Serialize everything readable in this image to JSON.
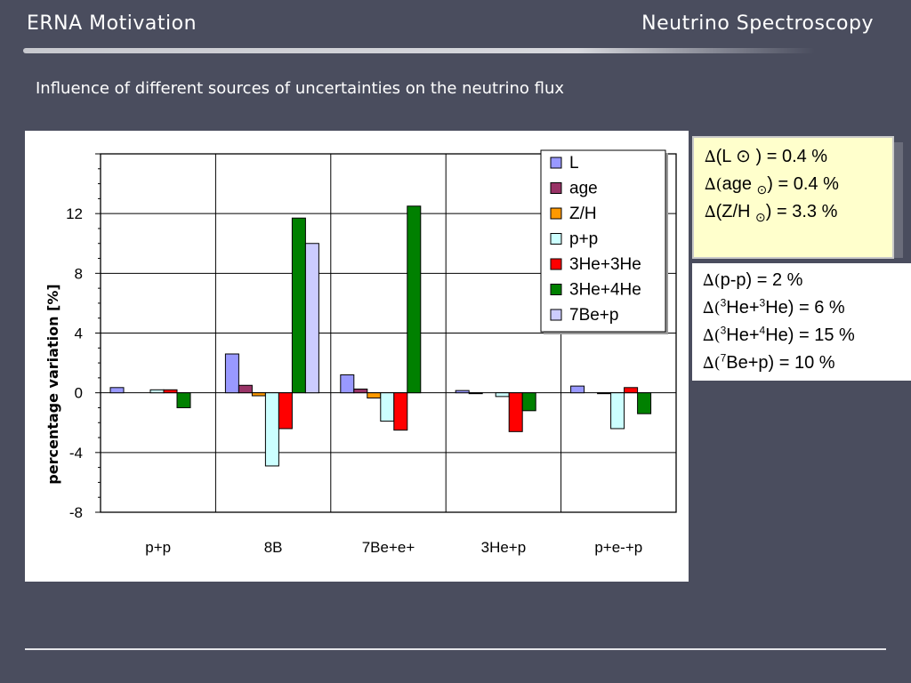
{
  "header": {
    "left_title": "ERNA  Motivation",
    "right_title": "Neutrino Spectroscopy"
  },
  "subtitle": "Influence of different sources of uncertainties on the neutrino flux",
  "chart_data": {
    "type": "bar",
    "title": "",
    "xlabel": "",
    "ylabel": "percentage variation [%]",
    "ylim": [
      -8,
      16
    ],
    "yticks": [
      -8,
      -4,
      0,
      4,
      8,
      12
    ],
    "grid": true,
    "legend_position": "top-right",
    "categories": [
      "p+p",
      "8B",
      "7Be+e+",
      "3He+p",
      "p+e-+p"
    ],
    "series": [
      {
        "name": "L",
        "color": "#9999ff",
        "values": [
          0.35,
          2.6,
          1.2,
          0.15,
          0.45
        ]
      },
      {
        "name": "age",
        "color": "#993366",
        "values": [
          0.0,
          0.5,
          0.25,
          -0.05,
          0.0
        ]
      },
      {
        "name": "Z/H",
        "color": "#ff9900",
        "values": [
          0.0,
          -0.2,
          -0.35,
          0.0,
          -0.05
        ]
      },
      {
        "name": "p+p",
        "color": "#ccffff",
        "values": [
          0.2,
          -4.9,
          -1.9,
          -0.25,
          -2.4
        ]
      },
      {
        "name": "3He+3He",
        "color": "#ff0000",
        "values": [
          0.2,
          -2.4,
          -2.5,
          -2.6,
          0.35
        ]
      },
      {
        "name": "3He+4He",
        "color": "#008000",
        "values": [
          -1.0,
          11.7,
          12.5,
          -1.2,
          -1.4
        ]
      },
      {
        "name": "7Be+p",
        "color": "#ccccff",
        "values": [
          0.0,
          10.0,
          0.0,
          0.0,
          0.0
        ]
      }
    ]
  },
  "info_top": {
    "line1_text": "(L ⊙ ) = 0.4 %",
    "line2_pre": "age ",
    "line2_sub": "⊙",
    "line2_post": ") = 0.4 %",
    "line3_pre": "(Z/H ",
    "line3_sub": "⊙",
    "line3_post": ") = 3.3 %"
  },
  "info_bottom": {
    "line1_text": "p-p) = 2 %",
    "line2_sup1": "3",
    "line2_mid": "He+",
    "line2_sup2": "3",
    "line2_post": "He) = 6 %",
    "line3_sup1": "3",
    "line3_mid": "He+",
    "line3_sup2": "4",
    "line3_post": "He) = 15 %",
    "line4_sup": "7",
    "line4_post": "Be+p) = 10 %"
  },
  "symbols": {
    "delta": "∆",
    "delta_paren": "∆("
  },
  "colors": {
    "background": "#4a4d5e",
    "panel": "#ffffff",
    "note_fill": "#ffffcc"
  }
}
